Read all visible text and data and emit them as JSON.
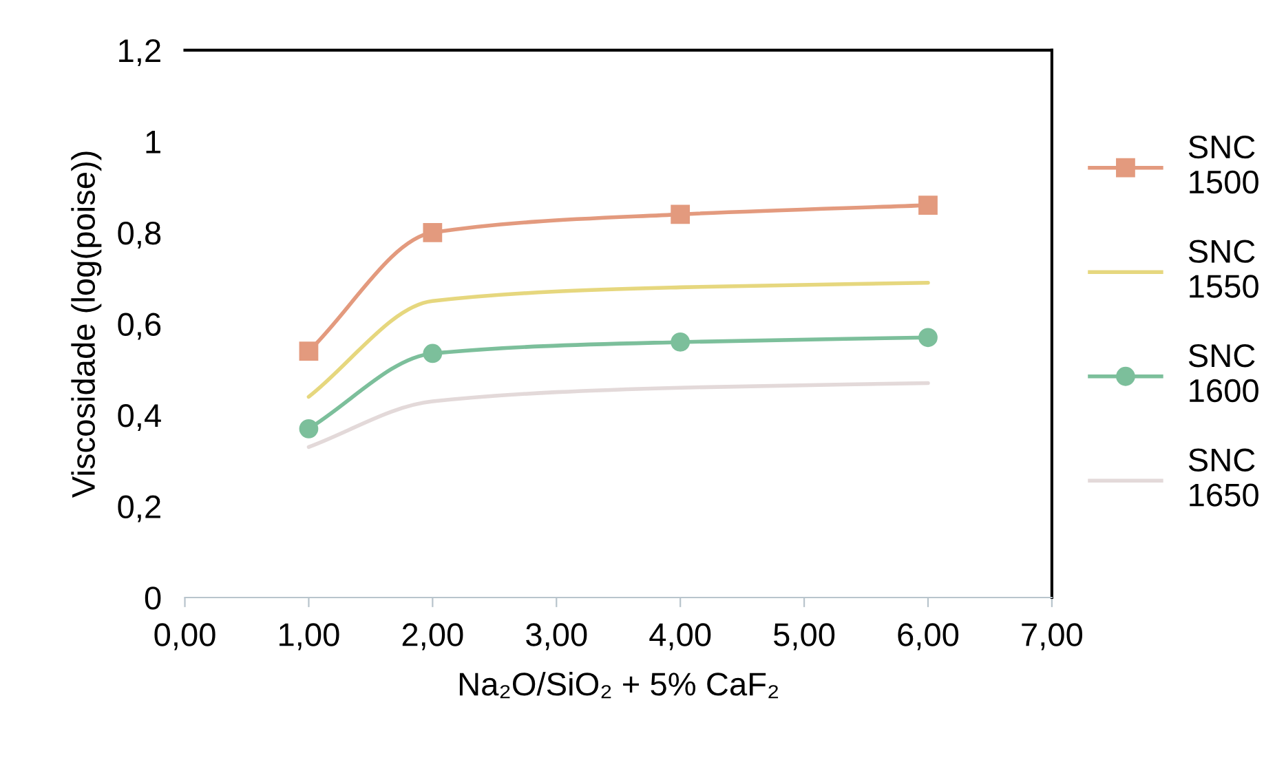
{
  "chart_data": {
    "type": "line",
    "xlabel": "Na₂O/SiO₂ + 5% CaF₂",
    "ylabel": "Viscosidade (log(poise))",
    "x": [
      1,
      2,
      4,
      6
    ],
    "series": [
      {
        "name": "SNC\n1500",
        "color": "#e39a7e",
        "marker": "square",
        "values": [
          0.54,
          0.8,
          0.84,
          0.86
        ]
      },
      {
        "name": "SNC\n1550",
        "color": "#e6d77e",
        "marker": "none",
        "values": [
          0.44,
          0.65,
          0.68,
          0.69
        ]
      },
      {
        "name": "SNC\n1600",
        "color": "#7cbf9b",
        "marker": "circle",
        "values": [
          0.37,
          0.535,
          0.56,
          0.57
        ]
      },
      {
        "name": "SNC\n1650",
        "color": "#e3d9d9",
        "marker": "none",
        "values": [
          0.33,
          0.43,
          0.46,
          0.47
        ]
      }
    ],
    "xlim": [
      0,
      7
    ],
    "ylim": [
      0,
      1.2
    ],
    "xticks": [
      {
        "value": 0,
        "label": "0,00"
      },
      {
        "value": 1,
        "label": "1,00"
      },
      {
        "value": 2,
        "label": "2,00"
      },
      {
        "value": 3,
        "label": "3,00"
      },
      {
        "value": 4,
        "label": "4,00"
      },
      {
        "value": 5,
        "label": "5,00"
      },
      {
        "value": 6,
        "label": "6,00"
      },
      {
        "value": 7,
        "label": "7,00"
      }
    ],
    "yticks": [
      0,
      {
        "value": 0.2,
        "label": "0,2"
      },
      {
        "value": 0.4,
        "label": "0,4"
      },
      {
        "value": 0.6,
        "label": "0,6"
      },
      {
        "value": 0.8,
        "label": "0,8"
      },
      1,
      {
        "value": 1.2,
        "label": "1,2"
      }
    ],
    "grid": false,
    "legend": "right",
    "line_style": "solid"
  }
}
